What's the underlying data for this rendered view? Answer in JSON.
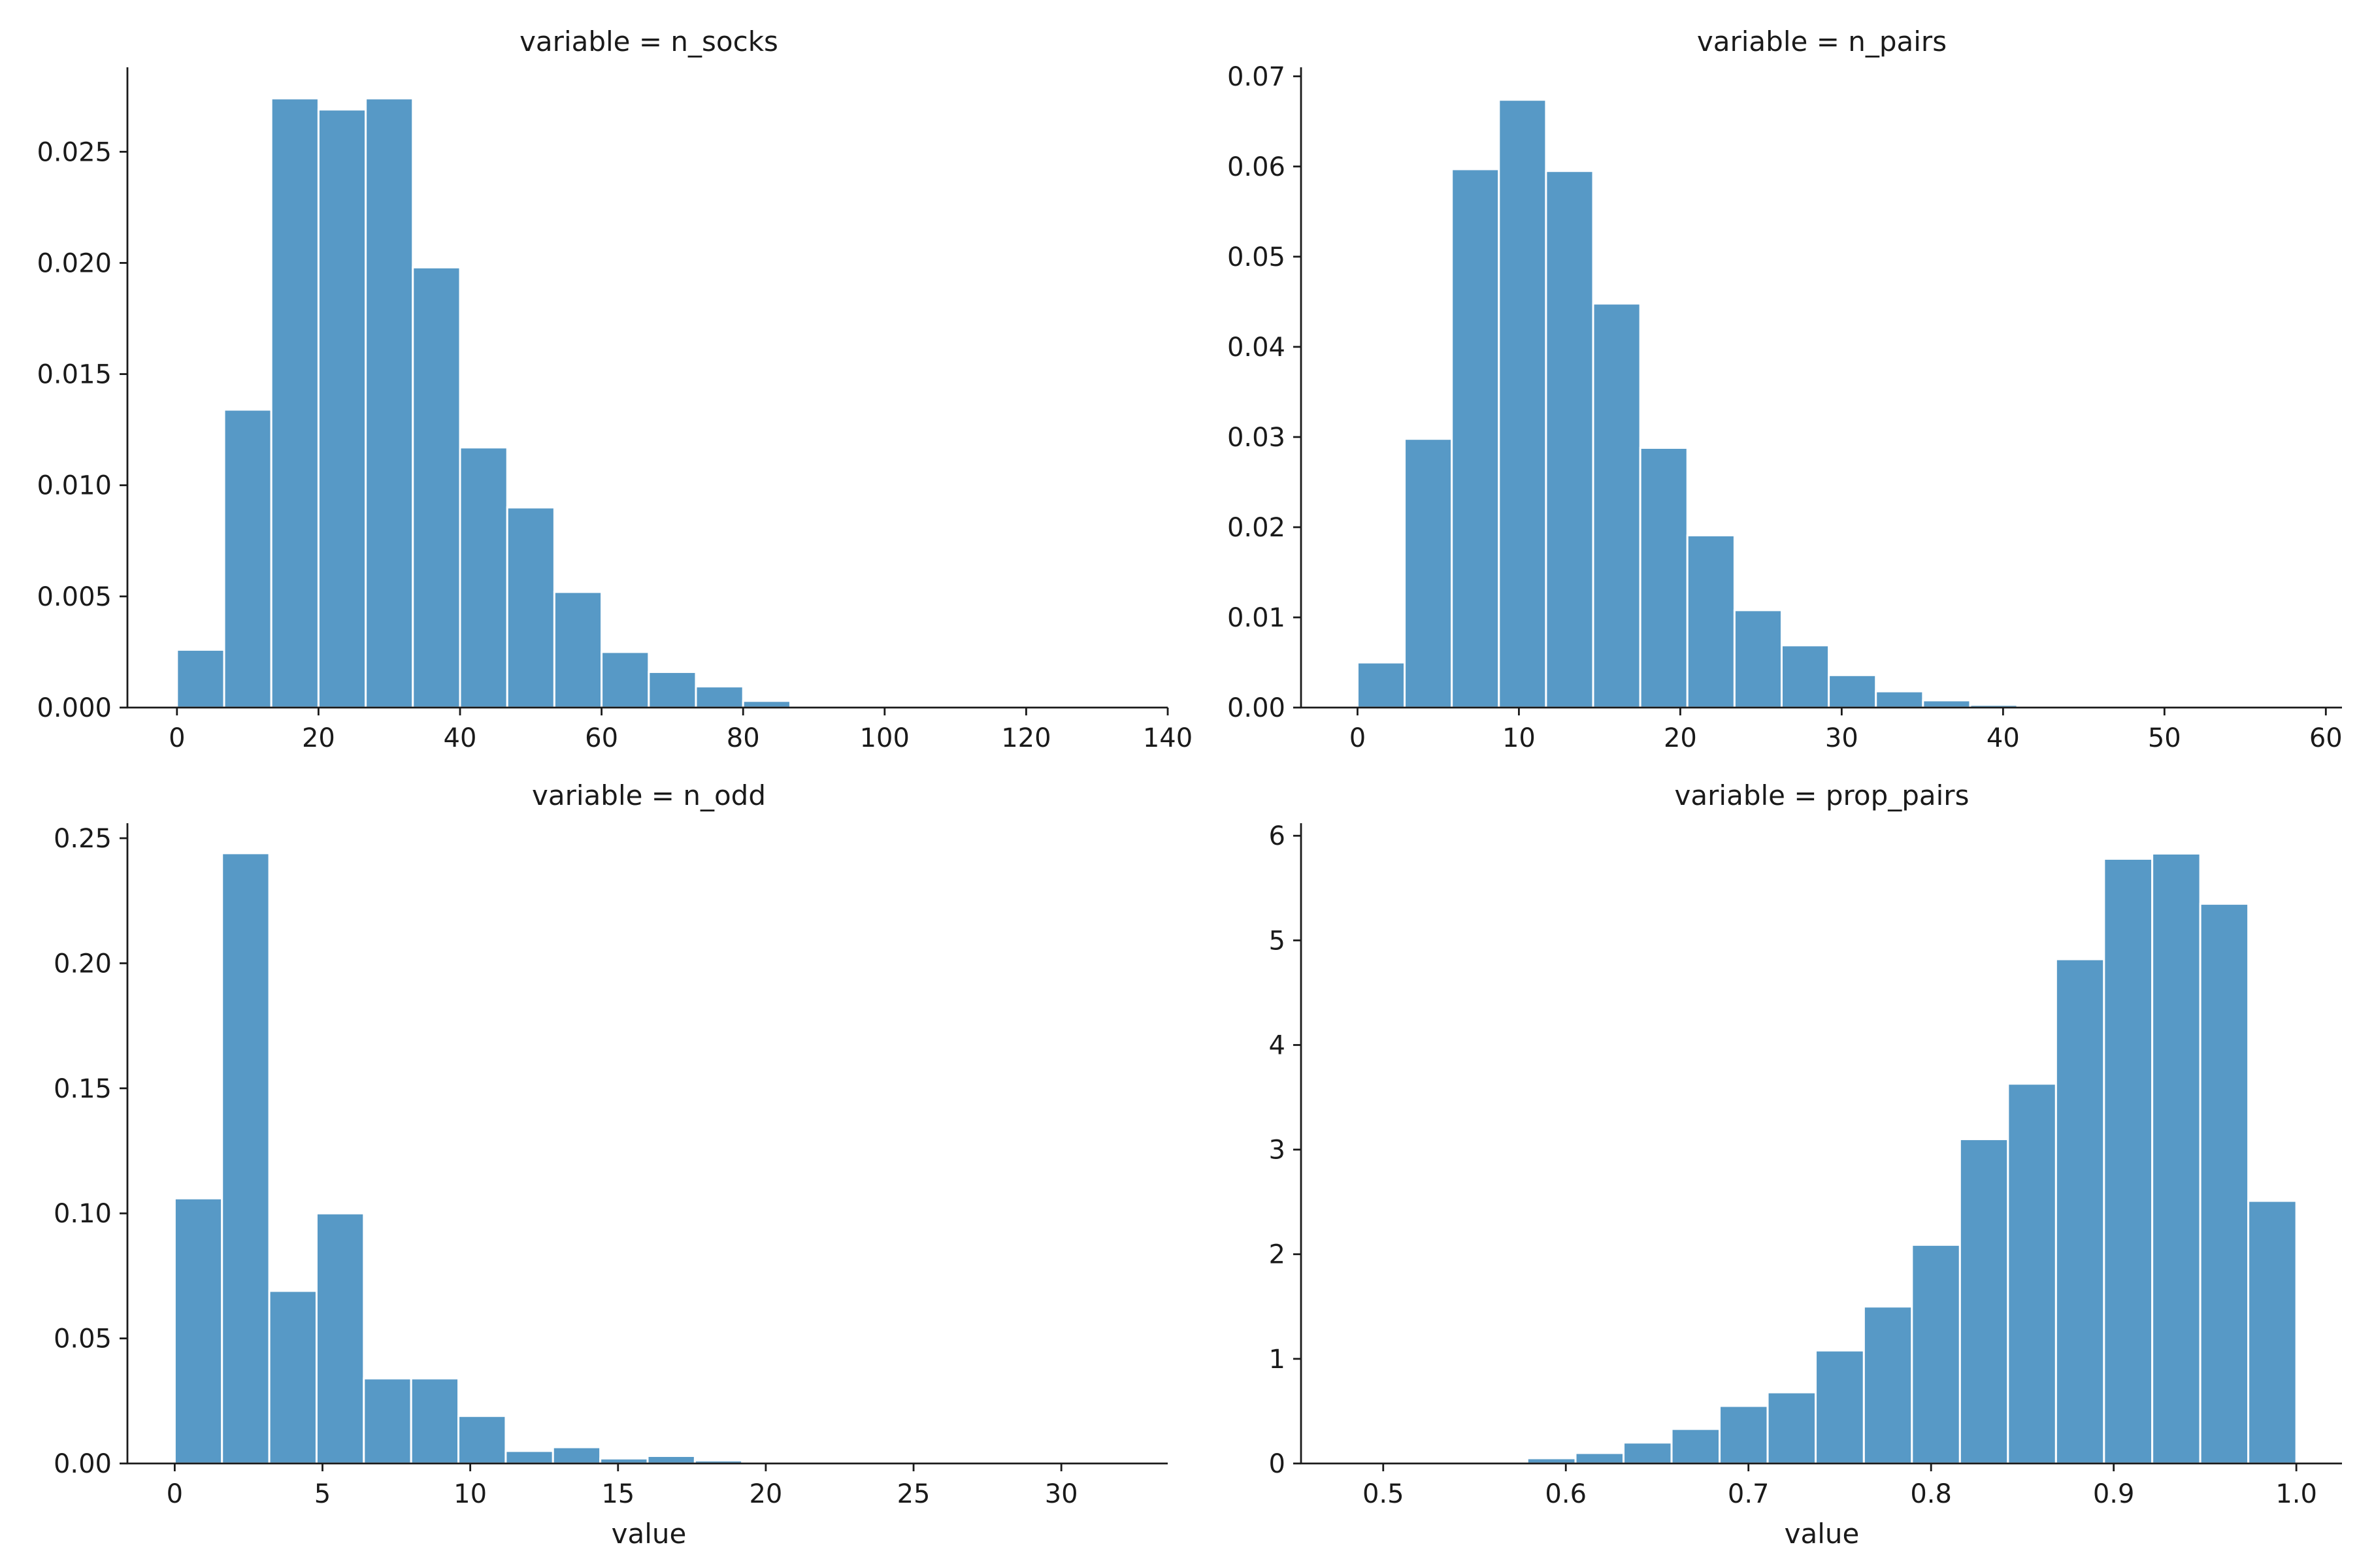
{
  "theme": {
    "bar_color": "#5799c6",
    "axis_color": "#1a1a1a",
    "background": "#ffffff"
  },
  "chart_data": [
    {
      "type": "bar",
      "subtype": "histogram",
      "title": "variable = n_socks",
      "xlabel": "",
      "ylabel": "",
      "grid": false,
      "xlim": [
        -7,
        140
      ],
      "ylim": [
        0,
        0.0288
      ],
      "xticks": [
        0,
        20,
        40,
        60,
        80,
        100,
        120,
        140
      ],
      "xtick_labels": [
        "0",
        "20",
        "40",
        "60",
        "80",
        "100",
        "120",
        "140"
      ],
      "yticks": [
        0,
        0.005,
        0.01,
        0.015,
        0.02,
        0.025
      ],
      "ytick_labels": [
        "0.000",
        "0.005",
        "0.010",
        "0.015",
        "0.020",
        "0.025"
      ],
      "bin_edges": [
        0,
        6.67,
        13.33,
        20,
        26.67,
        33.33,
        40,
        46.67,
        53.33,
        60,
        66.67,
        73.33,
        80,
        86.67
      ],
      "values": [
        0.0026,
        0.0134,
        0.0274,
        0.0269,
        0.0274,
        0.0198,
        0.0117,
        0.009,
        0.0052,
        0.0025,
        0.0016,
        0.00095,
        0.0003
      ]
    },
    {
      "type": "bar",
      "subtype": "histogram",
      "title": "variable = n_pairs",
      "xlabel": "",
      "ylabel": "",
      "grid": false,
      "xlim": [
        -3.5,
        61
      ],
      "ylim": [
        0,
        0.071
      ],
      "xticks": [
        0,
        10,
        20,
        30,
        40,
        50,
        60
      ],
      "xtick_labels": [
        "0",
        "10",
        "20",
        "30",
        "40",
        "50",
        "60"
      ],
      "yticks": [
        0,
        0.01,
        0.02,
        0.03,
        0.04,
        0.05,
        0.06,
        0.07
      ],
      "ytick_labels": [
        "0.00",
        "0.01",
        "0.02",
        "0.03",
        "0.04",
        "0.05",
        "0.06",
        "0.07"
      ],
      "bin_edges": [
        0,
        2.92,
        5.84,
        8.76,
        11.68,
        14.6,
        17.52,
        20.44,
        23.36,
        26.28,
        29.2,
        32.12,
        35.04,
        37.96,
        40.88
      ],
      "values": [
        0.005,
        0.0298,
        0.0597,
        0.0674,
        0.0595,
        0.0448,
        0.0288,
        0.0191,
        0.0108,
        0.0069,
        0.0036,
        0.0018,
        0.0008,
        0.0003
      ]
    },
    {
      "type": "bar",
      "subtype": "histogram",
      "title": "variable = n_odd",
      "xlabel": "value",
      "ylabel": "",
      "grid": false,
      "xlim": [
        -1.6,
        33.6
      ],
      "ylim": [
        0,
        0.256
      ],
      "xticks": [
        0,
        5,
        10,
        15,
        20,
        25,
        30
      ],
      "xtick_labels": [
        "0",
        "5",
        "10",
        "15",
        "20",
        "25",
        "30"
      ],
      "yticks": [
        0,
        0.05,
        0.1,
        0.15,
        0.2,
        0.25
      ],
      "ytick_labels": [
        "0.00",
        "0.05",
        "0.10",
        "0.15",
        "0.20",
        "0.25"
      ],
      "bin_edges": [
        0,
        1.6,
        3.2,
        4.8,
        6.4,
        8.0,
        9.6,
        11.2,
        12.8,
        14.4,
        16.0,
        17.6,
        19.2,
        20.8,
        22.4,
        24.0,
        25.6,
        27.2,
        28.8,
        30.4,
        32.0
      ],
      "values": [
        0.106,
        0.244,
        0.069,
        0.1,
        0.034,
        0.034,
        0.019,
        0.005,
        0.0065,
        0.002,
        0.003,
        0.0012,
        0.0003,
        0.0001,
        0.0001,
        5e-05,
        5e-05,
        3e-05,
        3e-05,
        3e-05
      ]
    },
    {
      "type": "bar",
      "subtype": "histogram",
      "title": "variable = prop_pairs",
      "xlabel": "value",
      "ylabel": "",
      "grid": false,
      "xlim": [
        0.455,
        1.025
      ],
      "ylim": [
        0,
        6.12
      ],
      "xticks": [
        0.5,
        0.6,
        0.7,
        0.8,
        0.9,
        1.0
      ],
      "xtick_labels": [
        "0.5",
        "0.6",
        "0.7",
        "0.8",
        "0.9",
        "1.0"
      ],
      "yticks": [
        0,
        1,
        2,
        3,
        4,
        5,
        6
      ],
      "ytick_labels": [
        "0",
        "1",
        "2",
        "3",
        "4",
        "5",
        "6"
      ],
      "bin_edges": [
        0.4737,
        0.5,
        0.5263,
        0.5526,
        0.5789,
        0.6053,
        0.6316,
        0.6579,
        0.6842,
        0.7105,
        0.7368,
        0.7632,
        0.7895,
        0.8158,
        0.8421,
        0.8684,
        0.8947,
        0.9211,
        0.9474,
        0.9737,
        1.0
      ],
      "values": [
        0.002,
        0.002,
        0.002,
        0.003,
        0.05,
        0.1,
        0.2,
        0.33,
        0.55,
        0.68,
        1.08,
        1.5,
        2.09,
        3.1,
        3.63,
        4.82,
        5.78,
        5.83,
        5.35,
        2.51
      ]
    }
  ]
}
